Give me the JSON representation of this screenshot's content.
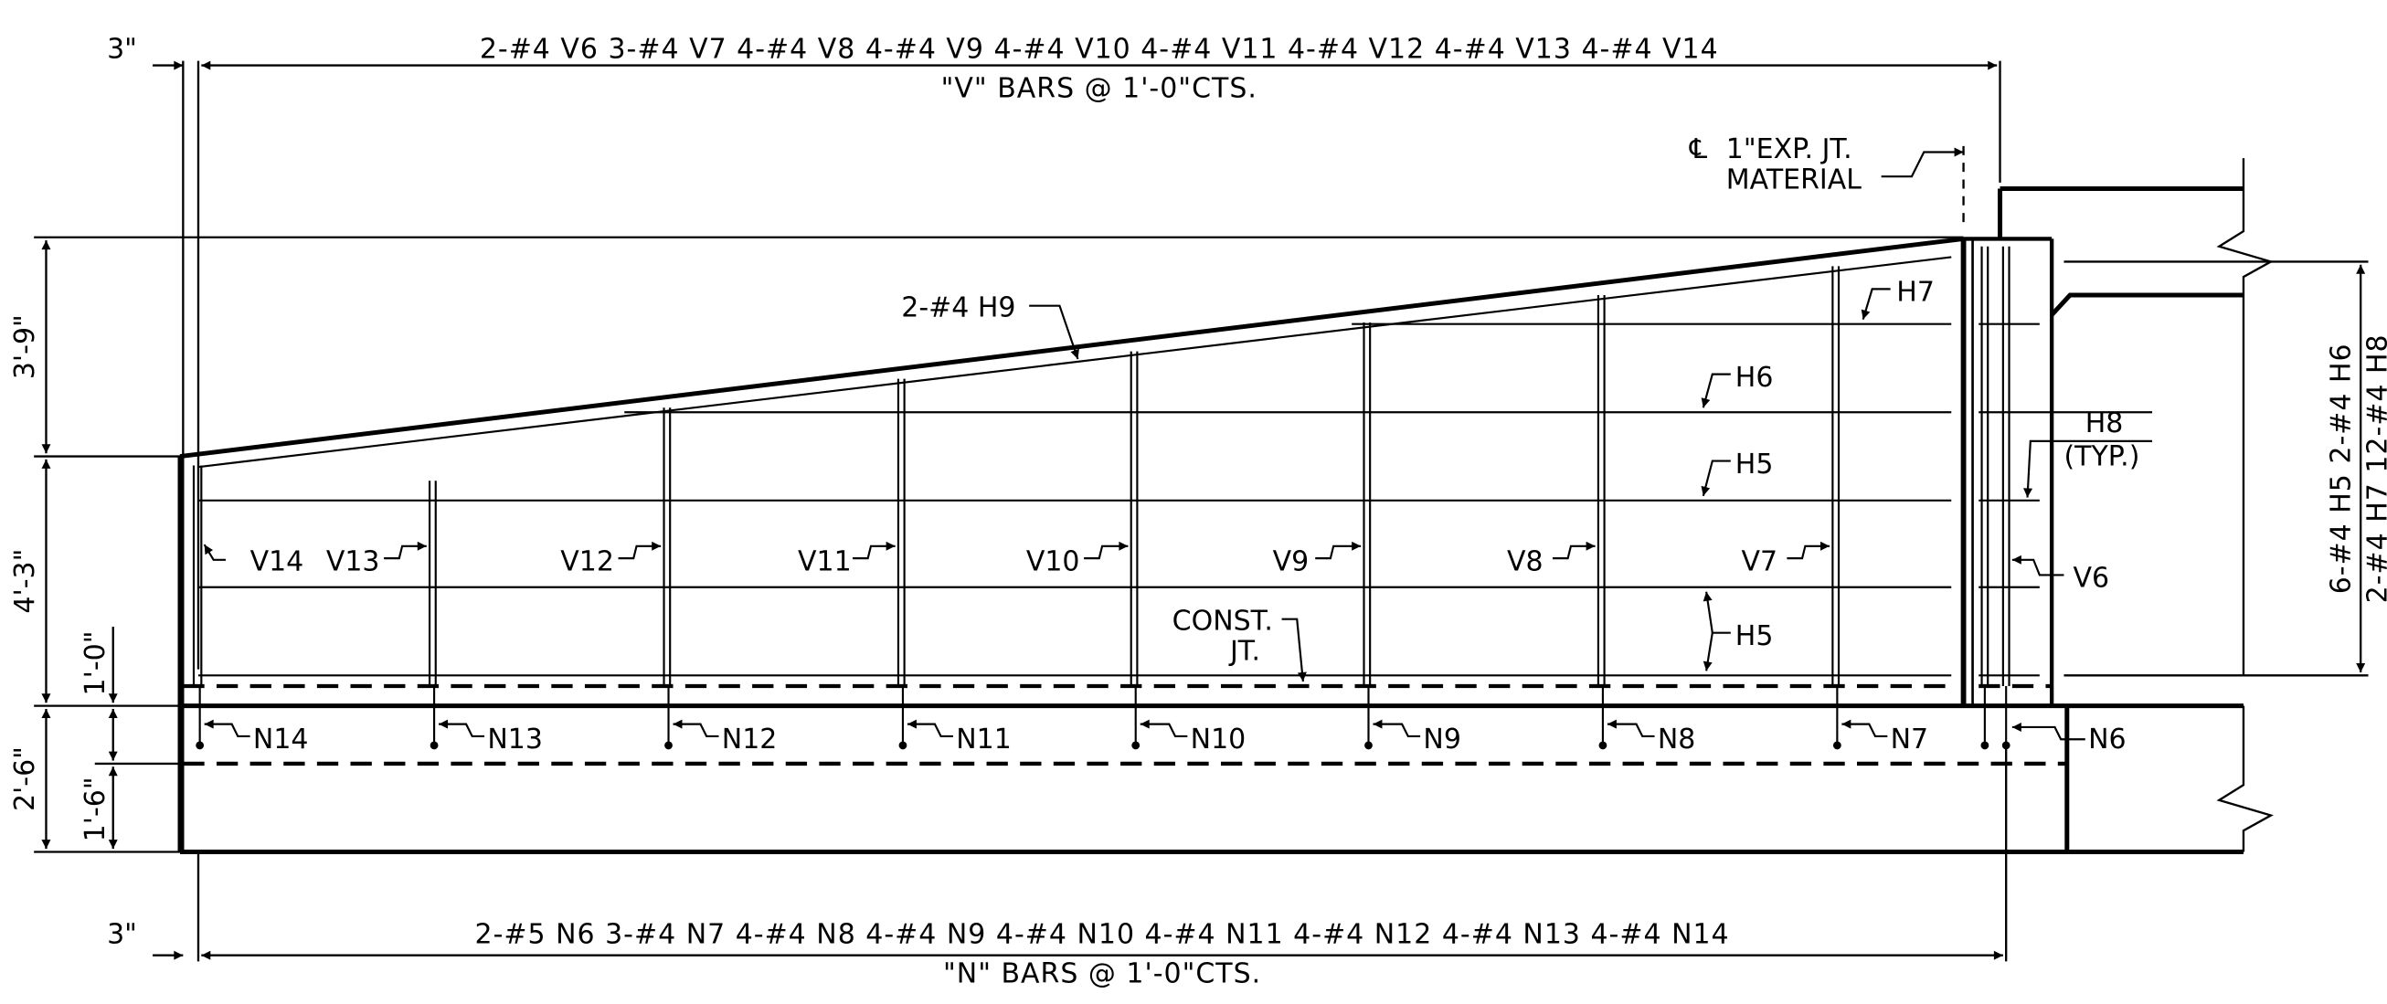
{
  "top_dimension": {
    "v_bars_schedule": "2-#4 V6 3-#4 V7 4-#4 V8 4-#4 V9 4-#4 V10 4-#4 V11 4-#4 V12 4-#4 V13 4-#4 V14",
    "v_bars_note": "\"V\" BARS @ 1'-0\"CTS.",
    "left_offset": "3\""
  },
  "bottom_dimension": {
    "n_bars_schedule": "2-#5 N6 3-#4 N7 4-#4 N8 4-#4 N9 4-#4 N10 4-#4 N11 4-#4 N12 4-#4 N13 4-#4 N14",
    "n_bars_note": "\"N\" BARS @ 1'-0\"CTS.",
    "left_offset": "3\""
  },
  "left_dimensions": {
    "upper": "3'-9\"",
    "middle": "4'-3\"",
    "constjt_height": "1'-0\"",
    "footing_total": "2'-6\"",
    "footing_inner": "1'-6\""
  },
  "right_dimension": {
    "line1": "6-#4 H5 2-#4 H6",
    "line2": "2-#4 H7 12-#4 H8"
  },
  "joint_note": {
    "symbol": "℄",
    "line1": "1\"EXP. JT.",
    "line2": "MATERIAL"
  },
  "labels": {
    "h9": "2-#4 H9",
    "h7": "H7",
    "h6": "H6",
    "h5_upper": "H5",
    "h5_lower": "H5",
    "h8": "H8",
    "h8_typ": "(TYP.)",
    "const_jt_1": "CONST.",
    "const_jt_2": "JT.",
    "v14": "V14",
    "v13": "V13",
    "v12": "V12",
    "v11": "V11",
    "v10": "V10",
    "v9": "V9",
    "v8": "V8",
    "v7": "V7",
    "v6": "V6",
    "n14": "N14",
    "n13": "N13",
    "n12": "N12",
    "n11": "N11",
    "n10": "N10",
    "n9": "N9",
    "n8": "N8",
    "n7": "N7",
    "n6": "N6"
  }
}
